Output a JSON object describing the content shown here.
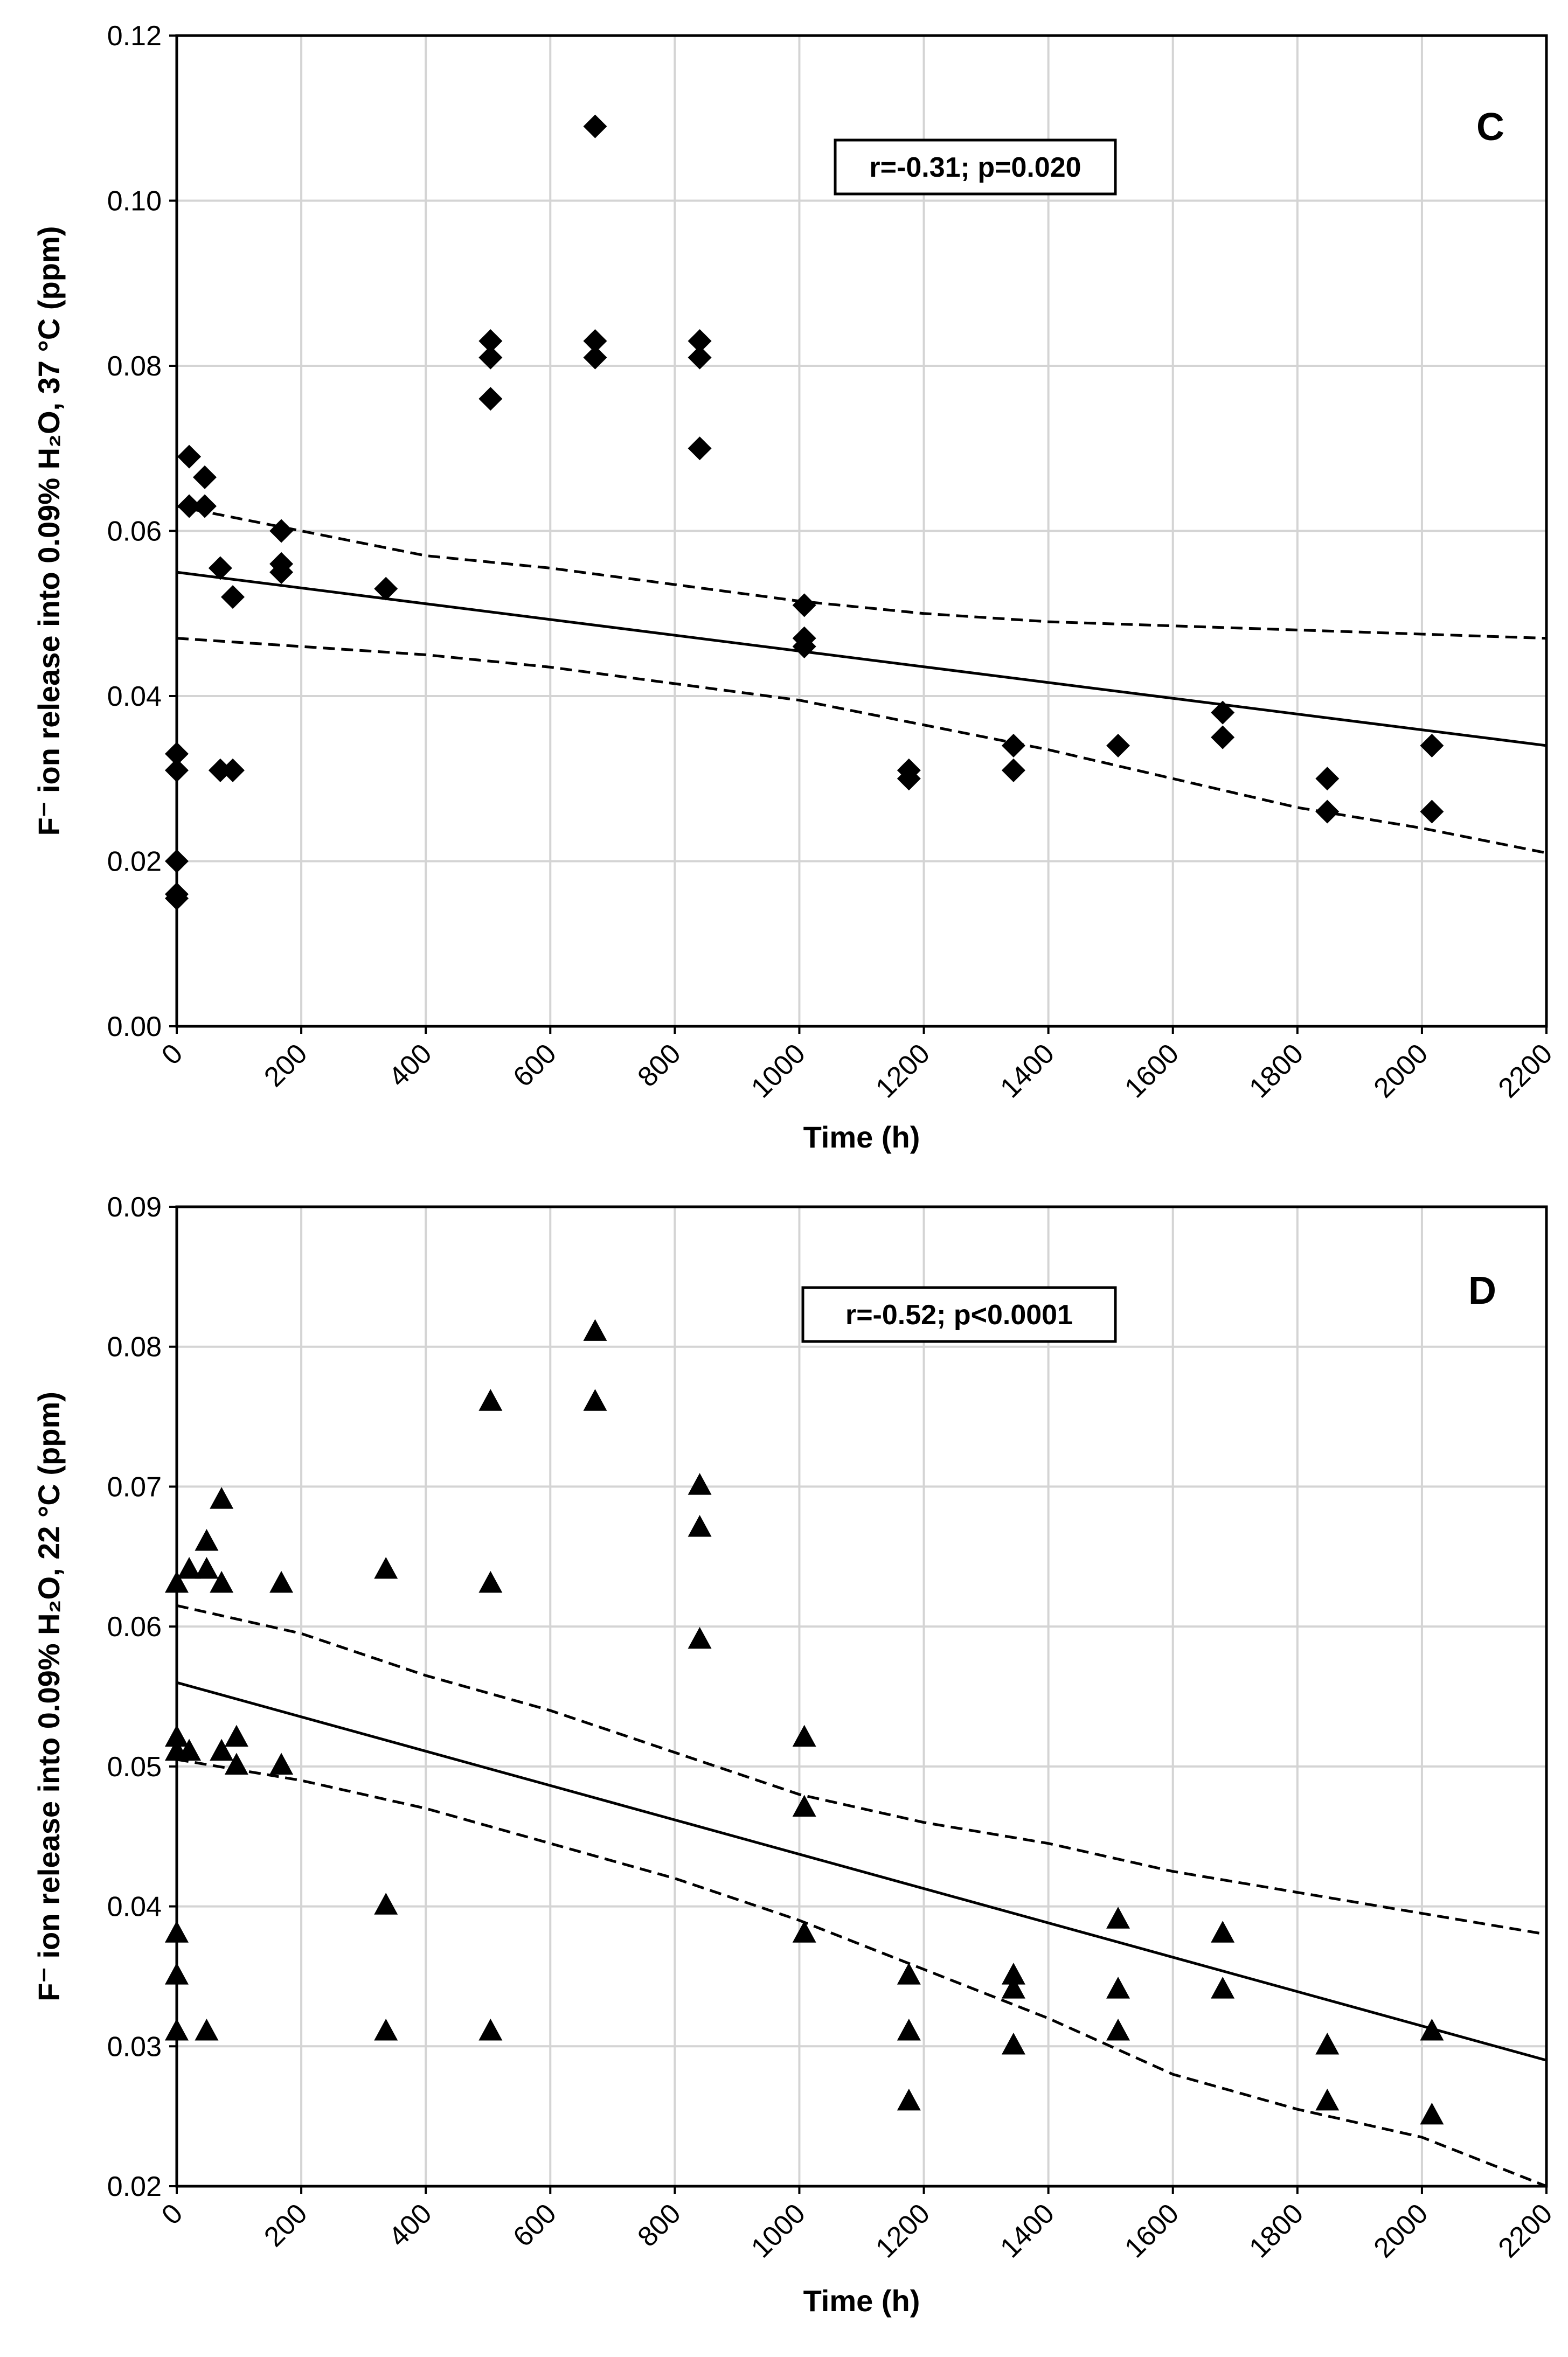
{
  "chart_data": [
    {
      "panel": "C",
      "type": "scatter",
      "marker": "diamond",
      "annotation": "r=-0.31; p=0.020",
      "xlabel": "Time  (h)",
      "ylabel": "F⁻ ion release into 0.09% H₂O, 37 °C (ppm)",
      "xlim": [
        0,
        2200
      ],
      "ylim": [
        0,
        0.12
      ],
      "xticks": [
        0,
        200,
        400,
        600,
        800,
        1000,
        1200,
        1400,
        1600,
        1800,
        2000,
        2200
      ],
      "yticks": [
        "0.00",
        "0.02",
        "0.04",
        "0.06",
        "0.08",
        "0.10",
        "0.12"
      ],
      "points": [
        [
          0,
          0.0155
        ],
        [
          0,
          0.016
        ],
        [
          0,
          0.02
        ],
        [
          0,
          0.031
        ],
        [
          0,
          0.033
        ],
        [
          20,
          0.063
        ],
        [
          20,
          0.069
        ],
        [
          45,
          0.063
        ],
        [
          45,
          0.0665
        ],
        [
          70,
          0.031
        ],
        [
          70,
          0.0555
        ],
        [
          90,
          0.031
        ],
        [
          90,
          0.052
        ],
        [
          168,
          0.055
        ],
        [
          168,
          0.056
        ],
        [
          168,
          0.06
        ],
        [
          336,
          0.053
        ],
        [
          504,
          0.076
        ],
        [
          504,
          0.081
        ],
        [
          504,
          0.083
        ],
        [
          672,
          0.081
        ],
        [
          672,
          0.083
        ],
        [
          672,
          0.109
        ],
        [
          840,
          0.07
        ],
        [
          840,
          0.081
        ],
        [
          840,
          0.083
        ],
        [
          1008,
          0.046
        ],
        [
          1008,
          0.047
        ],
        [
          1008,
          0.051
        ],
        [
          1176,
          0.03
        ],
        [
          1176,
          0.031
        ],
        [
          1344,
          0.031
        ],
        [
          1344,
          0.034
        ],
        [
          1512,
          0.034
        ],
        [
          1680,
          0.035
        ],
        [
          1680,
          0.038
        ],
        [
          1848,
          0.026
        ],
        [
          1848,
          0.03
        ],
        [
          2016,
          0.026
        ],
        [
          2016,
          0.034
        ]
      ],
      "fit_line": [
        [
          0,
          0.055
        ],
        [
          2200,
          0.034
        ]
      ],
      "ci_upper": [
        [
          0,
          0.063
        ],
        [
          200,
          0.06
        ],
        [
          400,
          0.057
        ],
        [
          600,
          0.0555
        ],
        [
          800,
          0.0535
        ],
        [
          1000,
          0.0515
        ],
        [
          1200,
          0.05
        ],
        [
          1400,
          0.049
        ],
        [
          1600,
          0.0485
        ],
        [
          1800,
          0.048
        ],
        [
          2000,
          0.0475
        ],
        [
          2200,
          0.047
        ]
      ],
      "ci_lower": [
        [
          0,
          0.047
        ],
        [
          200,
          0.046
        ],
        [
          400,
          0.045
        ],
        [
          600,
          0.0435
        ],
        [
          800,
          0.0415
        ],
        [
          1000,
          0.0395
        ],
        [
          1200,
          0.0365
        ],
        [
          1400,
          0.0335
        ],
        [
          1600,
          0.03
        ],
        [
          1800,
          0.0265
        ],
        [
          2000,
          0.024
        ],
        [
          2200,
          0.021
        ]
      ]
    },
    {
      "panel": "D",
      "type": "scatter",
      "marker": "triangle",
      "annotation": "r=-0.52; p<0.0001",
      "xlabel": "Time  (h)",
      "ylabel": "F⁻ ion release into 0.09% H₂O, 22 °C (ppm)",
      "xlim": [
        0,
        2200
      ],
      "ylim": [
        0.02,
        0.09
      ],
      "xticks": [
        0,
        200,
        400,
        600,
        800,
        1000,
        1200,
        1400,
        1600,
        1800,
        2000,
        2200
      ],
      "yticks": [
        "0.02",
        "0.03",
        "0.04",
        "0.05",
        "0.06",
        "0.07",
        "0.08",
        "0.09"
      ],
      "points": [
        [
          0,
          0.031
        ],
        [
          0,
          0.035
        ],
        [
          0,
          0.038
        ],
        [
          0,
          0.051
        ],
        [
          0,
          0.052
        ],
        [
          0,
          0.063
        ],
        [
          20,
          0.051
        ],
        [
          20,
          0.064
        ],
        [
          48,
          0.031
        ],
        [
          48,
          0.064
        ],
        [
          48,
          0.066
        ],
        [
          72,
          0.051
        ],
        [
          72,
          0.063
        ],
        [
          72,
          0.069
        ],
        [
          96,
          0.05
        ],
        [
          96,
          0.052
        ],
        [
          168,
          0.05
        ],
        [
          168,
          0.063
        ],
        [
          336,
          0.031
        ],
        [
          336,
          0.04
        ],
        [
          336,
          0.064
        ],
        [
          504,
          0.031
        ],
        [
          504,
          0.063
        ],
        [
          504,
          0.076
        ],
        [
          672,
          0.076
        ],
        [
          672,
          0.081
        ],
        [
          840,
          0.059
        ],
        [
          840,
          0.067
        ],
        [
          840,
          0.07
        ],
        [
          1008,
          0.038
        ],
        [
          1008,
          0.047
        ],
        [
          1008,
          0.052
        ],
        [
          1176,
          0.026
        ],
        [
          1176,
          0.031
        ],
        [
          1176,
          0.035
        ],
        [
          1344,
          0.03
        ],
        [
          1344,
          0.034
        ],
        [
          1344,
          0.035
        ],
        [
          1512,
          0.031
        ],
        [
          1512,
          0.034
        ],
        [
          1512,
          0.039
        ],
        [
          1680,
          0.034
        ],
        [
          1680,
          0.038
        ],
        [
          1848,
          0.026
        ],
        [
          1848,
          0.03
        ],
        [
          2016,
          0.025
        ],
        [
          2016,
          0.031
        ]
      ],
      "fit_line": [
        [
          0,
          0.056
        ],
        [
          2200,
          0.029
        ]
      ],
      "ci_upper": [
        [
          0,
          0.0615
        ],
        [
          200,
          0.0595
        ],
        [
          400,
          0.0565
        ],
        [
          600,
          0.054
        ],
        [
          800,
          0.051
        ],
        [
          1000,
          0.048
        ],
        [
          1200,
          0.046
        ],
        [
          1400,
          0.0445
        ],
        [
          1600,
          0.0425
        ],
        [
          1800,
          0.041
        ],
        [
          2000,
          0.0395
        ],
        [
          2200,
          0.038
        ]
      ],
      "ci_lower": [
        [
          0,
          0.0505
        ],
        [
          200,
          0.049
        ],
        [
          400,
          0.047
        ],
        [
          600,
          0.0445
        ],
        [
          800,
          0.042
        ],
        [
          1000,
          0.039
        ],
        [
          1200,
          0.0355
        ],
        [
          1400,
          0.032
        ],
        [
          1600,
          0.028
        ],
        [
          1800,
          0.0255
        ],
        [
          2000,
          0.0235
        ],
        [
          2200,
          0.02
        ]
      ]
    }
  ]
}
